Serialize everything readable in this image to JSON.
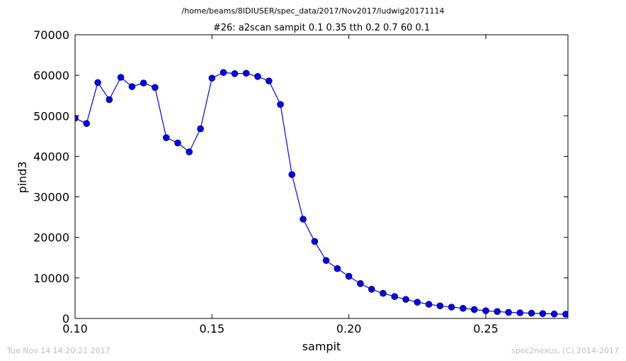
{
  "chart_data": {
    "type": "line",
    "suptitle": "/home/beams/8IDIUSER/spec_data/2017/Nov2017/ludwig20171114",
    "title": "#26: a2scan  sampit 0.1 0.35  tth 0.2 0.7  60 0.1",
    "xlabel": "sampit",
    "ylabel": "pind3",
    "xlim": [
      0.1,
      0.28
    ],
    "ylim": [
      0,
      70000
    ],
    "xticks": [
      "0.10",
      "0.15",
      "0.20",
      "0.25"
    ],
    "xtick_values": [
      0.1,
      0.15,
      0.2,
      0.25
    ],
    "yticks": [
      "0",
      "10000",
      "20000",
      "30000",
      "40000",
      "50000",
      "60000",
      "70000"
    ],
    "ytick_values": [
      0,
      10000,
      20000,
      30000,
      40000,
      50000,
      60000,
      70000
    ],
    "grid": false,
    "line_color": "#0000ff",
    "marker_color": "#0000ff",
    "series": [
      {
        "x": [
          0.1,
          0.1042,
          0.1083,
          0.1125,
          0.1167,
          0.1208,
          0.125,
          0.1292,
          0.1333,
          0.1375,
          0.1417,
          0.1458,
          0.15,
          0.1542,
          0.1583,
          0.1625,
          0.1667,
          0.1708,
          0.175,
          0.1792,
          0.1833,
          0.1875,
          0.1917,
          0.1958,
          0.2,
          0.2042,
          0.2083,
          0.2125,
          0.2167,
          0.2208,
          0.225,
          0.2292,
          0.2333,
          0.2375,
          0.2417,
          0.2458,
          0.25,
          0.2542,
          0.2583,
          0.2625,
          0.2667,
          0.2708,
          0.275,
          0.2792
        ],
        "y": [
          49400,
          48100,
          58200,
          54000,
          59500,
          57200,
          58100,
          57000,
          44600,
          43300,
          41100,
          46800,
          59300,
          60700,
          60400,
          60500,
          59700,
          58600,
          52800,
          35500,
          24500,
          19000,
          14300,
          12300,
          10400,
          8600,
          7200,
          6200,
          5400,
          4700,
          4000,
          3500,
          3100,
          2800,
          2500,
          2200,
          1900,
          1700,
          1500,
          1400,
          1300,
          1200,
          1100,
          1050
        ]
      }
    ]
  },
  "footer": {
    "timestamp": "Tue Nov 14 14:20:21 2017",
    "credit": "spec2nexus, (C) 2014-2017"
  }
}
